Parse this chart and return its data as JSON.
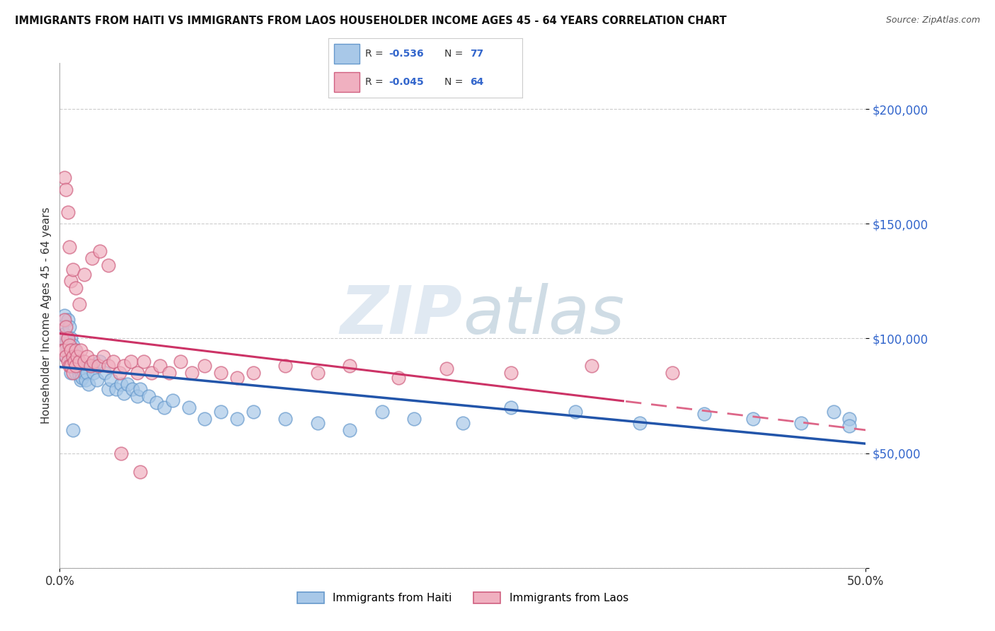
{
  "title": "IMMIGRANTS FROM HAITI VS IMMIGRANTS FROM LAOS HOUSEHOLDER INCOME AGES 45 - 64 YEARS CORRELATION CHART",
  "source": "Source: ZipAtlas.com",
  "ylabel": "Householder Income Ages 45 - 64 years",
  "xlim": [
    0.0,
    0.5
  ],
  "ylim": [
    0,
    220000
  ],
  "yticks": [
    0,
    50000,
    100000,
    150000,
    200000
  ],
  "ytick_labels": [
    "",
    "$50,000",
    "$100,000",
    "$150,000",
    "$200,000"
  ],
  "xticks": [
    0.0,
    0.5
  ],
  "xtick_labels": [
    "0.0%",
    "50.0%"
  ],
  "haiti_color": "#a8c8e8",
  "haiti_edge_color": "#6699cc",
  "laos_color": "#f0b0c0",
  "laos_edge_color": "#d06080",
  "haiti_line_color": "#2255aa",
  "laos_line_solid_color": "#cc3366",
  "laos_line_dash_color": "#dd6688",
  "R_haiti": -0.536,
  "N_haiti": 77,
  "R_laos": -0.045,
  "N_laos": 64,
  "legend_label_haiti": "Immigrants from Haiti",
  "legend_label_laos": "Immigrants from Laos",
  "haiti_x": [
    0.001,
    0.002,
    0.002,
    0.003,
    0.003,
    0.003,
    0.004,
    0.004,
    0.005,
    0.005,
    0.005,
    0.006,
    0.006,
    0.006,
    0.007,
    0.007,
    0.007,
    0.007,
    0.008,
    0.008,
    0.008,
    0.009,
    0.009,
    0.01,
    0.01,
    0.01,
    0.011,
    0.011,
    0.012,
    0.012,
    0.013,
    0.013,
    0.014,
    0.015,
    0.016,
    0.017,
    0.018,
    0.02,
    0.021,
    0.023,
    0.025,
    0.028,
    0.03,
    0.032,
    0.035,
    0.038,
    0.04,
    0.042,
    0.045,
    0.048,
    0.05,
    0.055,
    0.06,
    0.065,
    0.07,
    0.08,
    0.09,
    0.1,
    0.11,
    0.12,
    0.14,
    0.16,
    0.18,
    0.2,
    0.22,
    0.25,
    0.28,
    0.32,
    0.36,
    0.4,
    0.43,
    0.46,
    0.48,
    0.49,
    0.49,
    0.005,
    0.008
  ],
  "haiti_y": [
    105000,
    100000,
    95000,
    110000,
    102000,
    95000,
    98000,
    92000,
    108000,
    100000,
    95000,
    105000,
    98000,
    92000,
    100000,
    95000,
    90000,
    85000,
    97000,
    92000,
    88000,
    95000,
    90000,
    92000,
    88000,
    85000,
    90000,
    87000,
    88000,
    84000,
    86000,
    82000,
    83000,
    85000,
    82000,
    85000,
    80000,
    88000,
    85000,
    82000,
    90000,
    85000,
    78000,
    82000,
    78000,
    80000,
    76000,
    80000,
    78000,
    75000,
    78000,
    75000,
    72000,
    70000,
    73000,
    70000,
    65000,
    68000,
    65000,
    68000,
    65000,
    63000,
    60000,
    68000,
    65000,
    63000,
    70000,
    68000,
    63000,
    67000,
    65000,
    63000,
    68000,
    65000,
    62000,
    95000,
    60000
  ],
  "laos_x": [
    0.001,
    0.002,
    0.003,
    0.003,
    0.004,
    0.004,
    0.005,
    0.005,
    0.006,
    0.006,
    0.007,
    0.007,
    0.008,
    0.008,
    0.009,
    0.01,
    0.01,
    0.011,
    0.012,
    0.013,
    0.015,
    0.017,
    0.019,
    0.021,
    0.024,
    0.027,
    0.03,
    0.033,
    0.037,
    0.04,
    0.044,
    0.048,
    0.052,
    0.057,
    0.062,
    0.068,
    0.075,
    0.082,
    0.09,
    0.1,
    0.11,
    0.12,
    0.14,
    0.16,
    0.18,
    0.21,
    0.24,
    0.28,
    0.33,
    0.38,
    0.003,
    0.004,
    0.005,
    0.006,
    0.007,
    0.008,
    0.01,
    0.012,
    0.015,
    0.02,
    0.025,
    0.03,
    0.038,
    0.05
  ],
  "laos_y": [
    100000,
    95000,
    108000,
    95000,
    105000,
    92000,
    100000,
    90000,
    97000,
    88000,
    95000,
    88000,
    92000,
    85000,
    90000,
    95000,
    88000,
    92000,
    90000,
    95000,
    90000,
    92000,
    88000,
    90000,
    88000,
    92000,
    88000,
    90000,
    85000,
    88000,
    90000,
    85000,
    90000,
    85000,
    88000,
    85000,
    90000,
    85000,
    88000,
    85000,
    83000,
    85000,
    88000,
    85000,
    88000,
    83000,
    87000,
    85000,
    88000,
    85000,
    170000,
    165000,
    155000,
    140000,
    125000,
    130000,
    122000,
    115000,
    128000,
    135000,
    138000,
    132000,
    50000,
    42000
  ]
}
